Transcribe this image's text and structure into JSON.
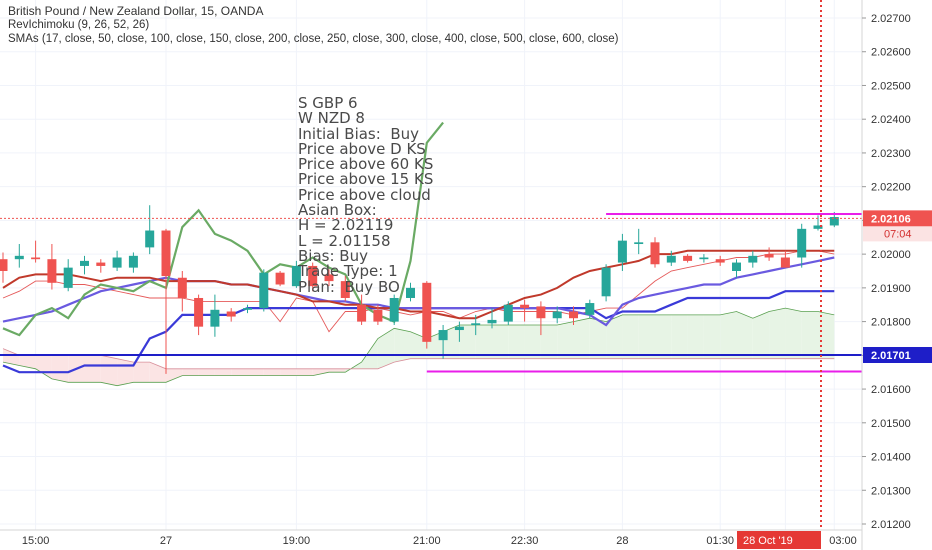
{
  "legend": {
    "symbol_line": "British Pound / New Zealand Dollar, 15, OANDA",
    "ichimoku_line": "RevIchimoku (9, 26, 52, 26)",
    "sma_line": "SMAs (17, close, 50, close, 100, close, 150, close, 200, close, 250, close, 300, close, 400, close, 500, close, 600, close)"
  },
  "note_lines": [
    "S GBP 6",
    "W NZD 8",
    "Initial Bias:  Buy",
    "Price above D KS",
    "Price above 60 KS",
    "Price above 15 KS",
    "Price above cloud",
    "Asian Box:",
    "H = 2.02119",
    "L = 2.01158",
    "Bias: Buy",
    "Trade Type: 1",
    "Plan:  Buy BO"
  ],
  "colors": {
    "up": "#26a69a",
    "down": "#ef5350",
    "magenta": "#e91ee9",
    "blue": "#1e1ec8",
    "purple_line": "#6a5ae0",
    "green_line": "#6aaa64",
    "red_line": "#c0392b",
    "vline": "#e53935",
    "cloud_green": "#e7f4e5",
    "cloud_red": "#fbe4e4",
    "axis_text": "#333333",
    "grid": "#f0f3fa"
  },
  "chart_data": {
    "type": "candlestick",
    "symbol": "GBPNZD",
    "timeframe": "15",
    "y_axis_ticks": [
      "2.02700",
      "2.02600",
      "2.02500",
      "2.02400",
      "2.02300",
      "2.02200",
      "2.02100",
      "2.02000",
      "2.01900",
      "2.01800",
      "2.01700",
      "2.01600",
      "2.01500",
      "2.01400",
      "2.01300",
      "2.01200"
    ],
    "ylim": [
      2.0119,
      2.0275
    ],
    "x_axis_labels": [
      "15:00",
      "27",
      "19:00",
      "21:00",
      "22:30",
      "28",
      "01:30",
      "28 Oct '19",
      "03:00"
    ],
    "x_label_bar_index": [
      2,
      10,
      18,
      26,
      32,
      38,
      44,
      48,
      51
    ],
    "bars_count": 52,
    "candles": [
      {
        "o": 2.01985,
        "h": 2.02005,
        "l": 2.01915,
        "c": 2.0195
      },
      {
        "o": 2.01985,
        "h": 2.0203,
        "l": 2.0196,
        "c": 2.01995
      },
      {
        "o": 2.0199,
        "h": 2.0204,
        "l": 2.01975,
        "c": 2.01985
      },
      {
        "o": 2.01985,
        "h": 2.0203,
        "l": 2.01895,
        "c": 2.01915
      },
      {
        "o": 2.019,
        "h": 2.01985,
        "l": 2.0189,
        "c": 2.0196
      },
      {
        "o": 2.01965,
        "h": 2.01995,
        "l": 2.0194,
        "c": 2.0198
      },
      {
        "o": 2.01975,
        "h": 2.01985,
        "l": 2.01945,
        "c": 2.01965
      },
      {
        "o": 2.0196,
        "h": 2.0201,
        "l": 2.0195,
        "c": 2.0199
      },
      {
        "o": 2.0196,
        "h": 2.02005,
        "l": 2.01945,
        "c": 2.01995
      },
      {
        "o": 2.0202,
        "h": 2.02145,
        "l": 2.02,
        "c": 2.0207
      },
      {
        "o": 2.0207,
        "h": 2.02075,
        "l": 2.01645,
        "c": 2.01935
      },
      {
        "o": 2.0193,
        "h": 2.0195,
        "l": 2.0183,
        "c": 2.0187
      },
      {
        "o": 2.0187,
        "h": 2.0188,
        "l": 2.0176,
        "c": 2.01785
      },
      {
        "o": 2.01785,
        "h": 2.0188,
        "l": 2.01755,
        "c": 2.01835
      },
      {
        "o": 2.0183,
        "h": 2.0184,
        "l": 2.018,
        "c": 2.01815
      },
      {
        "o": 2.01835,
        "h": 2.0185,
        "l": 2.01825,
        "c": 2.0184
      },
      {
        "o": 2.0184,
        "h": 2.01955,
        "l": 2.0183,
        "c": 2.01945
      },
      {
        "o": 2.01945,
        "h": 2.0195,
        "l": 2.01905,
        "c": 2.0191
      },
      {
        "o": 2.01905,
        "h": 2.0198,
        "l": 2.019,
        "c": 2.01965
      },
      {
        "o": 2.01965,
        "h": 2.01975,
        "l": 2.0189,
        "c": 2.01905
      },
      {
        "o": 2.0194,
        "h": 2.01955,
        "l": 2.01905,
        "c": 2.0192
      },
      {
        "o": 2.0192,
        "h": 2.01935,
        "l": 2.0186,
        "c": 2.0187
      },
      {
        "o": 2.0185,
        "h": 2.0188,
        "l": 2.0179,
        "c": 2.018
      },
      {
        "o": 2.01835,
        "h": 2.0185,
        "l": 2.0179,
        "c": 2.018
      },
      {
        "o": 2.018,
        "h": 2.0188,
        "l": 2.0179,
        "c": 2.0187
      },
      {
        "o": 2.0187,
        "h": 2.01915,
        "l": 2.0186,
        "c": 2.019
      },
      {
        "o": 2.01915,
        "h": 2.0192,
        "l": 2.0172,
        "c": 2.0174
      },
      {
        "o": 2.01745,
        "h": 2.0179,
        "l": 2.0169,
        "c": 2.01775
      },
      {
        "o": 2.01775,
        "h": 2.018,
        "l": 2.0174,
        "c": 2.01785
      },
      {
        "o": 2.0179,
        "h": 2.0182,
        "l": 2.0176,
        "c": 2.01795
      },
      {
        "o": 2.01795,
        "h": 2.0184,
        "l": 2.0178,
        "c": 2.01805
      },
      {
        "o": 2.018,
        "h": 2.0186,
        "l": 2.0179,
        "c": 2.0185
      },
      {
        "o": 2.0185,
        "h": 2.01865,
        "l": 2.018,
        "c": 2.0184
      },
      {
        "o": 2.01845,
        "h": 2.0186,
        "l": 2.0176,
        "c": 2.0181
      },
      {
        "o": 2.0181,
        "h": 2.01845,
        "l": 2.01795,
        "c": 2.0183
      },
      {
        "o": 2.0183,
        "h": 2.01845,
        "l": 2.0179,
        "c": 2.0181
      },
      {
        "o": 2.0182,
        "h": 2.01865,
        "l": 2.0181,
        "c": 2.01855
      },
      {
        "o": 2.01875,
        "h": 2.0197,
        "l": 2.0186,
        "c": 2.0196
      },
      {
        "o": 2.01975,
        "h": 2.0206,
        "l": 2.0195,
        "c": 2.0204
      },
      {
        "o": 2.0203,
        "h": 2.02075,
        "l": 2.02,
        "c": 2.02035
      },
      {
        "o": 2.02035,
        "h": 2.0205,
        "l": 2.0196,
        "c": 2.0197
      },
      {
        "o": 2.01975,
        "h": 2.0201,
        "l": 2.01965,
        "c": 2.01995
      },
      {
        "o": 2.01995,
        "h": 2.02,
        "l": 2.01975,
        "c": 2.0198
      },
      {
        "o": 2.01985,
        "h": 2.02,
        "l": 2.01975,
        "c": 2.0199
      },
      {
        "o": 2.01985,
        "h": 2.01995,
        "l": 2.01965,
        "c": 2.01975
      },
      {
        "o": 2.0195,
        "h": 2.01985,
        "l": 2.0193,
        "c": 2.01975
      },
      {
        "o": 2.01975,
        "h": 2.0201,
        "l": 2.0196,
        "c": 2.01995
      },
      {
        "o": 2.02,
        "h": 2.0202,
        "l": 2.0198,
        "c": 2.0199
      },
      {
        "o": 2.0199,
        "h": 2.0201,
        "l": 2.0196,
        "c": 2.0196
      },
      {
        "o": 2.0199,
        "h": 2.0209,
        "l": 2.0196,
        "c": 2.02075
      },
      {
        "o": 2.02075,
        "h": 2.02115,
        "l": 2.0207,
        "c": 2.02085
      },
      {
        "o": 2.02085,
        "h": 2.02125,
        "l": 2.0208,
        "c": 2.0211
      }
    ],
    "series": [
      {
        "name": "green SMA",
        "values": [
          2.0178,
          2.0176,
          2.0182,
          2.0184,
          2.0181,
          2.0188,
          2.0191,
          2.019,
          2.0189,
          2.0192,
          2.019,
          2.0208,
          2.0213,
          2.0206,
          2.0204,
          2.0201,
          2.0194,
          2.0197,
          2.0196,
          2.0199,
          2.0196,
          2.0194,
          2.0185,
          2.0182,
          2.018,
          2.0198,
          2.0233,
          2.0239
        ]
      },
      {
        "name": "red SMA",
        "values": [
          2.019,
          2.0193,
          2.0194,
          2.0194,
          2.0194,
          2.0193,
          2.0192,
          2.0193,
          2.0193,
          2.0193,
          2.0192,
          2.0192,
          2.0192,
          2.0192,
          2.0191,
          2.0191,
          2.019,
          2.0189,
          2.0188,
          2.0186,
          2.0186,
          2.0185,
          2.0185,
          2.0184,
          2.0184,
          2.0183,
          2.0183,
          2.0182,
          2.0181,
          2.0181,
          2.0183,
          2.0185,
          2.0187,
          2.0188,
          2.019,
          2.0193,
          2.0195,
          2.0196,
          2.0197,
          2.0198,
          2.02,
          2.02,
          2.0201,
          2.0201,
          2.0201,
          2.0201,
          2.0201,
          2.0201,
          2.0201,
          2.0201,
          2.0201,
          2.0201
        ]
      },
      {
        "name": "purple SMA",
        "values": [
          2.018,
          2.0181,
          2.0182,
          2.0183,
          2.0185,
          2.0187,
          2.0189,
          2.019,
          2.0191,
          2.0192,
          2.0193,
          2.0192,
          2.0192,
          2.0192,
          2.0191,
          2.0191,
          2.019,
          2.0189,
          2.0188,
          2.0187,
          2.0186,
          2.0186,
          2.0185,
          2.0185,
          2.0184,
          2.0184,
          2.0184,
          2.0184,
          2.0184,
          2.0184,
          2.0184,
          2.0184,
          2.0184,
          2.0184,
          2.0184,
          2.0183,
          2.0182,
          2.0179,
          2.0185,
          2.0187,
          2.0188,
          2.0189,
          2.019,
          2.0191,
          2.0191,
          2.0193,
          2.0194,
          2.0195,
          2.0196,
          2.0197,
          2.0198,
          2.0199
        ]
      },
      {
        "name": "blue step",
        "values": [
          2.0167,
          2.0165,
          2.0165,
          2.0165,
          2.0165,
          2.0167,
          2.0167,
          2.0167,
          2.0167,
          2.0175,
          2.0177,
          2.0182,
          2.0182,
          2.0182,
          2.0182,
          2.0184,
          2.0184,
          2.0184,
          2.0184,
          2.0184,
          2.0184,
          2.0184,
          2.0184,
          2.0184,
          2.0184,
          2.0184,
          2.0184,
          2.0184,
          2.0184,
          2.0184,
          2.0184,
          2.0184,
          2.0184,
          2.0184,
          2.0184,
          2.0184,
          2.0184,
          2.0181,
          2.0183,
          2.0183,
          2.0183,
          2.0185,
          2.0187,
          2.0187,
          2.0187,
          2.0187,
          2.0187,
          2.0187,
          2.0189,
          2.0189,
          2.0189,
          2.0189
        ]
      },
      {
        "name": "cloud span A",
        "values": [
          2.0168,
          2.0167,
          2.0166,
          2.0163,
          2.0162,
          2.0162,
          2.0162,
          2.0161,
          2.0162,
          2.0162,
          2.0162,
          2.0164,
          2.0164,
          2.0164,
          2.0164,
          2.0164,
          2.0164,
          2.0164,
          2.0164,
          2.0164,
          2.0165,
          2.0165,
          2.0168,
          2.0175,
          2.0178,
          2.0177,
          2.0175,
          2.0177,
          2.0179,
          2.0179,
          2.0179,
          2.0179,
          2.0179,
          2.0179,
          2.0179,
          2.018,
          2.0181,
          2.018,
          2.0182,
          2.0182,
          2.0182,
          2.0182,
          2.0182,
          2.0182,
          2.0182,
          2.0183,
          2.0181,
          2.0183,
          2.0184,
          2.0183,
          2.0183,
          2.0182
        ]
      },
      {
        "name": "cloud span B",
        "values": [
          2.0172,
          2.017,
          2.017,
          2.017,
          2.017,
          2.017,
          2.017,
          2.0169,
          2.0168,
          2.0168,
          2.0166,
          2.0166,
          2.0166,
          2.0166,
          2.0166,
          2.0166,
          2.0166,
          2.0166,
          2.0166,
          2.0166,
          2.0166,
          2.0166,
          2.0166,
          2.0166,
          2.0168,
          2.0169,
          2.0169,
          2.0169,
          2.0169,
          2.0169,
          2.0169,
          2.0169,
          2.0169,
          2.0169,
          2.0169,
          2.0169,
          2.0169,
          2.0169,
          2.0169,
          2.0169,
          2.0169,
          2.0169,
          2.0169,
          2.0169,
          2.0169,
          2.0169,
          2.0169,
          2.0169,
          2.0169,
          2.0169,
          2.0169,
          2.0169
        ]
      },
      {
        "name": "red lagging",
        "values": [
          2.0187,
          2.0189,
          2.0192,
          2.0192,
          2.0191,
          2.0191,
          2.019,
          2.0189,
          2.0188,
          2.0187,
          2.0187,
          2.0187,
          2.0186,
          2.0186,
          2.0186,
          2.0186,
          2.0186,
          2.018,
          2.0187,
          2.0186,
          2.0177,
          2.0183,
          2.0183,
          2.0184,
          2.0183,
          2.0182,
          2.0183,
          2.0183,
          2.0181,
          2.0183,
          2.0184,
          2.0183,
          2.0183,
          2.0183,
          2.0183,
          2.0182,
          2.0183,
          2.0184,
          2.0184,
          2.0188,
          2.0192,
          2.0195,
          2.0196,
          2.0197,
          2.0198,
          2.0199,
          2.0199,
          2.02,
          2.02,
          2.0201,
          2.0201,
          2.02
        ]
      }
    ],
    "horizontal_levels": [
      {
        "value": 2.02119,
        "label": "2.02106",
        "sub": "07:04",
        "color": "#e91ee9"
      },
      {
        "value": 2.01701,
        "label": "2.01701",
        "color": "#1e1ec8"
      },
      {
        "value": 2.01652,
        "color": "#e91ee9"
      }
    ],
    "vertical_marker_label": "28 Oct '19"
  }
}
